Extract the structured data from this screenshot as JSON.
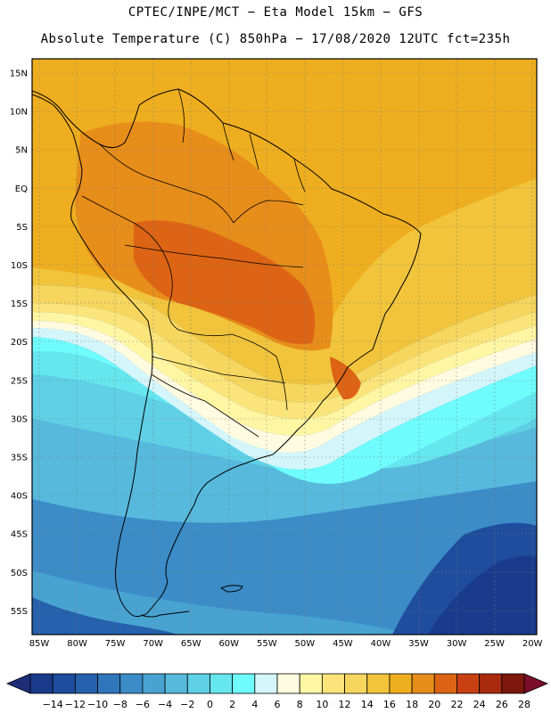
{
  "header": {
    "line1": "CPTEC/INPE/MCT −  Eta Model 15km − GFS",
    "line2": "Absolute Temperature (C) 850hPa − 17/08/2020 12UTC fct=235h"
  },
  "axes": {
    "lat_labels": [
      "15N",
      "10N",
      "5N",
      "EQ",
      "5S",
      "10S",
      "15S",
      "20S",
      "25S",
      "30S",
      "35S",
      "40S",
      "45S",
      "50S",
      "55S"
    ],
    "lon_labels": [
      "85W",
      "80W",
      "75W",
      "70W",
      "65W",
      "60W",
      "55W",
      "50W",
      "45W",
      "40W",
      "35W",
      "30W",
      "25W",
      "20W"
    ]
  },
  "colorbar": {
    "labels": [
      "−14",
      "−12",
      "−10",
      "−8",
      "−6",
      "−4",
      "−2",
      "0",
      "2",
      "4",
      "6",
      "8",
      "10",
      "12",
      "14",
      "16",
      "18",
      "20",
      "22",
      "24",
      "26",
      "28"
    ],
    "colors": [
      "#1a3a8c",
      "#1f4d9e",
      "#2561ad",
      "#2f76bb",
      "#3b8cc7",
      "#49a3d1",
      "#57b9dc",
      "#5fd0e6",
      "#66e6ef",
      "#6ffcfc",
      "#d4f6fb",
      "#fffbe0",
      "#fff6a4",
      "#fbe57a",
      "#f6d65e",
      "#f1c43c",
      "#eeae1f",
      "#e78d1a",
      "#dd6414",
      "#c94012",
      "#aa2a0f",
      "#7d170d"
    ],
    "low_color": "#1d2d78",
    "high_color": "#7a0e2a"
  }
}
